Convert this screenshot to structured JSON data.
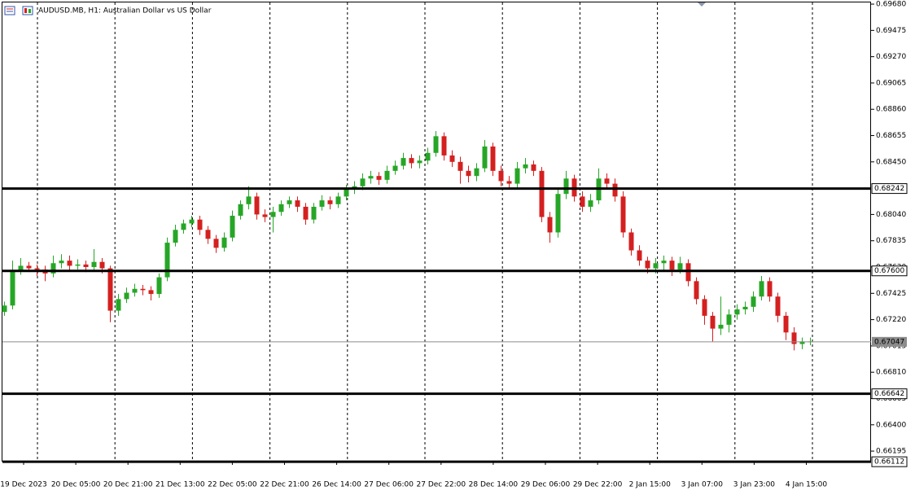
{
  "chart_data": {
    "type": "candlestick",
    "title": "AUDUSD.MB, H1:  Australian Dollar vs US Dollar",
    "up_color": "#26a626",
    "down_color": "#d42020",
    "ylim": [
      0.66113,
      0.69712
    ],
    "yticks": [
      {
        "value": 0.6968,
        "label": "0.69680"
      },
      {
        "value": 0.69475,
        "label": "0.69475"
      },
      {
        "value": 0.6927,
        "label": "0.69270"
      },
      {
        "value": 0.69065,
        "label": "0.69065"
      },
      {
        "value": 0.6886,
        "label": "0.68860"
      },
      {
        "value": 0.68655,
        "label": "0.68655"
      },
      {
        "value": 0.6845,
        "label": "0.68450"
      },
      {
        "value": 0.6804,
        "label": "0.68040"
      },
      {
        "value": 0.67835,
        "label": "0.67835"
      },
      {
        "value": 0.6763,
        "label": "0.67630"
      },
      {
        "value": 0.67425,
        "label": "0.67425"
      },
      {
        "value": 0.6722,
        "label": "0.67220"
      },
      {
        "value": 0.67015,
        "label": "0.67015"
      },
      {
        "value": 0.6681,
        "label": "0.66810"
      },
      {
        "value": 0.66605,
        "label": "0.66605"
      },
      {
        "value": 0.664,
        "label": "0.66400"
      },
      {
        "value": 0.66195,
        "label": "0.66195"
      }
    ],
    "levels": [
      {
        "value": 0.68242,
        "label": "0.68242"
      },
      {
        "value": 0.676,
        "label": "0.67600"
      },
      {
        "value": 0.66642,
        "label": "0.66642"
      },
      {
        "value": 0.66112,
        "label": "0.66112"
      }
    ],
    "current_price": {
      "value": 0.67047,
      "label": "0.67047"
    },
    "x_labels": [
      "19 Dec 2023",
      "20 Dec 05:00",
      "20 Dec 21:00",
      "21 Dec 13:00",
      "22 Dec 05:00",
      "22 Dec 21:00",
      "26 Dec 14:00",
      "27 Dec 06:00",
      "27 Dec 22:00",
      "28 Dec 14:00",
      "29 Dec 06:00",
      "29 Dec 22:00",
      "2 Jan 15:00",
      "3 Jan 07:00",
      "3 Jan 23:00",
      "4 Jan 15:00"
    ],
    "open": [
      0.6728,
      0.6733,
      0.676,
      0.6764,
      0.6762,
      0.6761,
      0.6758,
      0.6766,
      0.6768,
      0.6764,
      0.6765,
      0.6763,
      0.6767,
      0.6762,
      0.6729,
      0.6738,
      0.6743,
      0.6746,
      0.6745,
      0.6742,
      0.6755,
      0.6782,
      0.6792,
      0.6797,
      0.68,
      0.6792,
      0.6785,
      0.6778,
      0.6786,
      0.6803,
      0.6812,
      0.6818,
      0.6804,
      0.6802,
      0.6806,
      0.6812,
      0.6815,
      0.681,
      0.68,
      0.681,
      0.6815,
      0.6812,
      0.6818,
      0.6824,
      0.6826,
      0.6832,
      0.6834,
      0.6831,
      0.6838,
      0.6842,
      0.6848,
      0.6844,
      0.6846,
      0.6852,
      0.6865,
      0.685,
      0.6845,
      0.6838,
      0.6834,
      0.684,
      0.6857,
      0.6838,
      0.683,
      0.6828,
      0.684,
      0.6843,
      0.6838,
      0.6802,
      0.679,
      0.682,
      0.6832,
      0.6818,
      0.681,
      0.6815,
      0.6832,
      0.6828,
      0.6818,
      0.679,
      0.6776,
      0.6768,
      0.6762,
      0.6766,
      0.6768,
      0.6761,
      0.6766,
      0.6752,
      0.6738,
      0.6725,
      0.6715,
      0.6718,
      0.6726,
      0.673,
      0.6732,
      0.674,
      0.6752,
      0.674,
      0.6725,
      0.6712,
      0.6703,
      0.6705
    ],
    "high": [
      0.6736,
      0.6768,
      0.677,
      0.6767,
      0.6765,
      0.6764,
      0.6772,
      0.6773,
      0.6772,
      0.6769,
      0.6768,
      0.6777,
      0.677,
      0.6764,
      0.6742,
      0.6747,
      0.675,
      0.6749,
      0.6748,
      0.6758,
      0.6786,
      0.6796,
      0.68,
      0.6803,
      0.6803,
      0.6795,
      0.6788,
      0.679,
      0.6807,
      0.6815,
      0.6826,
      0.6821,
      0.6808,
      0.681,
      0.6815,
      0.6818,
      0.6818,
      0.6813,
      0.6813,
      0.6819,
      0.6818,
      0.6821,
      0.6827,
      0.683,
      0.6836,
      0.6838,
      0.6837,
      0.6842,
      0.6846,
      0.6852,
      0.6851,
      0.685,
      0.6856,
      0.6869,
      0.6868,
      0.6854,
      0.6849,
      0.6842,
      0.6844,
      0.6862,
      0.686,
      0.6842,
      0.6834,
      0.6845,
      0.6848,
      0.6846,
      0.6841,
      0.6806,
      0.6824,
      0.6838,
      0.6835,
      0.6822,
      0.682,
      0.684,
      0.6836,
      0.6832,
      0.6822,
      0.6793,
      0.678,
      0.6771,
      0.677,
      0.6772,
      0.6771,
      0.6771,
      0.6769,
      0.6755,
      0.6741,
      0.6728,
      0.674,
      0.673,
      0.6734,
      0.6736,
      0.6744,
      0.6756,
      0.6755,
      0.6743,
      0.6728,
      0.6716,
      0.6708,
      0.6708
    ],
    "low": [
      0.6725,
      0.673,
      0.6757,
      0.6759,
      0.6756,
      0.6752,
      0.6755,
      0.6762,
      0.676,
      0.6761,
      0.6759,
      0.676,
      0.6758,
      0.672,
      0.6725,
      0.6735,
      0.674,
      0.6741,
      0.6737,
      0.6739,
      0.6752,
      0.6779,
      0.6789,
      0.6794,
      0.6788,
      0.6781,
      0.6774,
      0.6775,
      0.6783,
      0.68,
      0.6808,
      0.68,
      0.6798,
      0.679,
      0.6803,
      0.6809,
      0.6806,
      0.6796,
      0.6797,
      0.6807,
      0.6808,
      0.6809,
      0.6815,
      0.682,
      0.6823,
      0.6828,
      0.6827,
      0.6828,
      0.6835,
      0.6839,
      0.684,
      0.684,
      0.6843,
      0.6849,
      0.6846,
      0.6841,
      0.6828,
      0.6829,
      0.683,
      0.6837,
      0.6834,
      0.6826,
      0.6824,
      0.6825,
      0.6836,
      0.6834,
      0.6798,
      0.6782,
      0.6786,
      0.6816,
      0.6814,
      0.6806,
      0.6806,
      0.6812,
      0.6824,
      0.6814,
      0.6786,
      0.6772,
      0.6764,
      0.6758,
      0.6758,
      0.676,
      0.6756,
      0.6758,
      0.6748,
      0.6734,
      0.6718,
      0.6705,
      0.671,
      0.6712,
      0.6722,
      0.6726,
      0.6728,
      0.6737,
      0.6736,
      0.672,
      0.6706,
      0.6698,
      0.6699,
      0.6702
    ],
    "close": [
      0.6733,
      0.676,
      0.6764,
      0.6762,
      0.6761,
      0.6758,
      0.6766,
      0.6768,
      0.6764,
      0.6765,
      0.6763,
      0.6767,
      0.6762,
      0.6729,
      0.6738,
      0.6743,
      0.6746,
      0.6745,
      0.6742,
      0.6755,
      0.6782,
      0.6792,
      0.6797,
      0.68,
      0.6792,
      0.6785,
      0.6778,
      0.6786,
      0.6803,
      0.6812,
      0.6818,
      0.6804,
      0.6802,
      0.6806,
      0.6812,
      0.6815,
      0.681,
      0.68,
      0.681,
      0.6815,
      0.6812,
      0.6818,
      0.6824,
      0.6826,
      0.6832,
      0.6834,
      0.6831,
      0.6838,
      0.6842,
      0.6848,
      0.6844,
      0.6846,
      0.6852,
      0.6865,
      0.685,
      0.6845,
      0.6838,
      0.6834,
      0.684,
      0.6857,
      0.6838,
      0.683,
      0.6828,
      0.684,
      0.6843,
      0.6838,
      0.6802,
      0.679,
      0.682,
      0.6832,
      0.6818,
      0.681,
      0.6815,
      0.6832,
      0.6828,
      0.6818,
      0.679,
      0.6776,
      0.6768,
      0.6762,
      0.6766,
      0.6768,
      0.6761,
      0.6766,
      0.6752,
      0.6738,
      0.6725,
      0.6715,
      0.6718,
      0.6726,
      0.673,
      0.6732,
      0.674,
      0.6752,
      0.674,
      0.6725,
      0.6712,
      0.6703,
      0.6705,
      0.6705
    ]
  }
}
